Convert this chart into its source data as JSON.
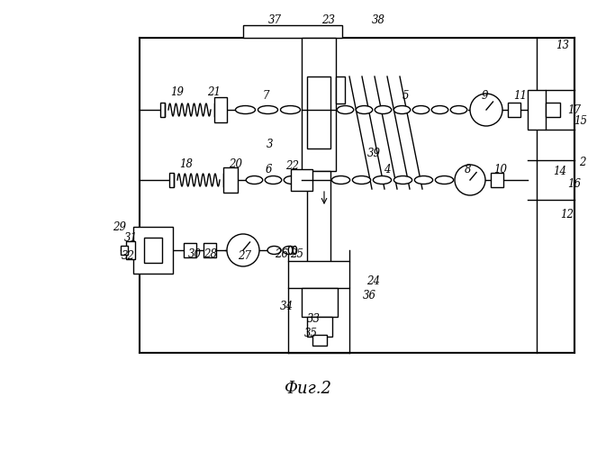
{
  "title": "Фиг.2",
  "bg_color": "#ffffff",
  "line_color": "#000000",
  "fig_width": 6.83,
  "fig_height": 5.0,
  "dpi": 100
}
